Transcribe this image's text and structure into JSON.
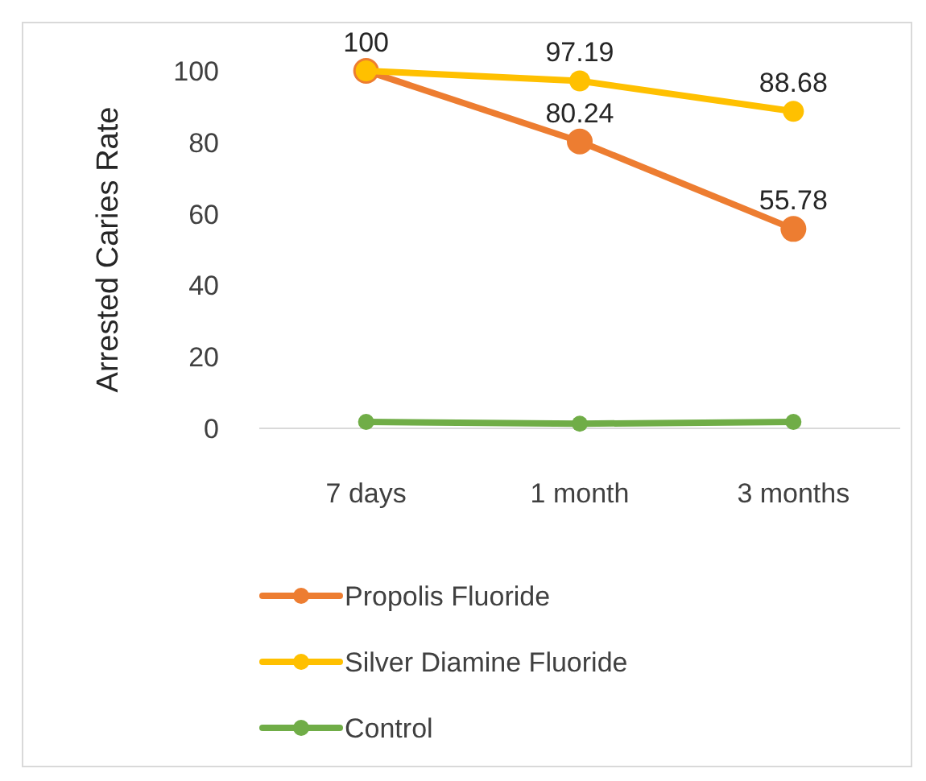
{
  "chart_data": {
    "type": "line",
    "ylabel": "Arrested Caries Rate",
    "categories": [
      "7 days",
      "1 month",
      "3 months"
    ],
    "ylim": [
      0,
      100
    ],
    "yticks": [
      0,
      20,
      40,
      60,
      80,
      100
    ],
    "marker": "circle",
    "legend": "bottom",
    "series": [
      {
        "name": "Propolis Fluoride",
        "color": "#ed7d31",
        "values": [
          100,
          80.24,
          55.78
        ],
        "value_labels": [
          null,
          "80.24",
          "55.78"
        ]
      },
      {
        "name": "Silver Diamine Fluoride",
        "color": "#ffc000",
        "values": [
          100,
          97.19,
          88.68
        ],
        "value_labels": [
          "100",
          "97.19",
          "88.68"
        ]
      },
      {
        "name": "Control",
        "color": "#70ad47",
        "values": [
          1.8,
          1.3,
          1.8
        ],
        "value_labels": [
          null,
          null,
          null
        ]
      }
    ]
  }
}
